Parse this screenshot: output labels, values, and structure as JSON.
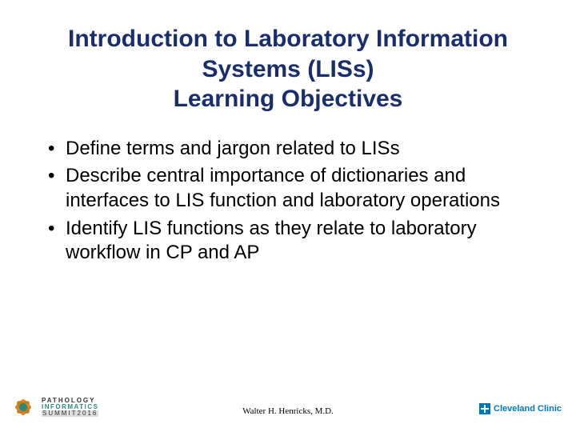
{
  "title_lines": [
    "Introduction to Laboratory Information",
    "Systems (LISs)",
    "Learning Objectives"
  ],
  "bullets": [
    "Define terms and jargon related to LISs",
    "Describe central importance of dictionaries and interfaces to LIS function and laboratory operations",
    "Identify LIS functions as they relate to laboratory workflow in CP and AP"
  ],
  "footer": {
    "author": "Walter H. Henricks, M.D.",
    "left_logo": {
      "line1": "PATHOLOGY",
      "line2": "INFORMATICS",
      "line3": "SUMMIT2016",
      "petal_color": "#d98a2b",
      "center_color": "#2a8a7a"
    },
    "right_logo": {
      "text": "Cleveland Clinic",
      "color": "#0078bf"
    }
  },
  "colors": {
    "title": "#1a2e6e",
    "body_text": "#000000",
    "background": "#ffffff"
  },
  "typography": {
    "title_fontsize": 30,
    "body_fontsize": 24,
    "footer_fontsize": 11
  }
}
